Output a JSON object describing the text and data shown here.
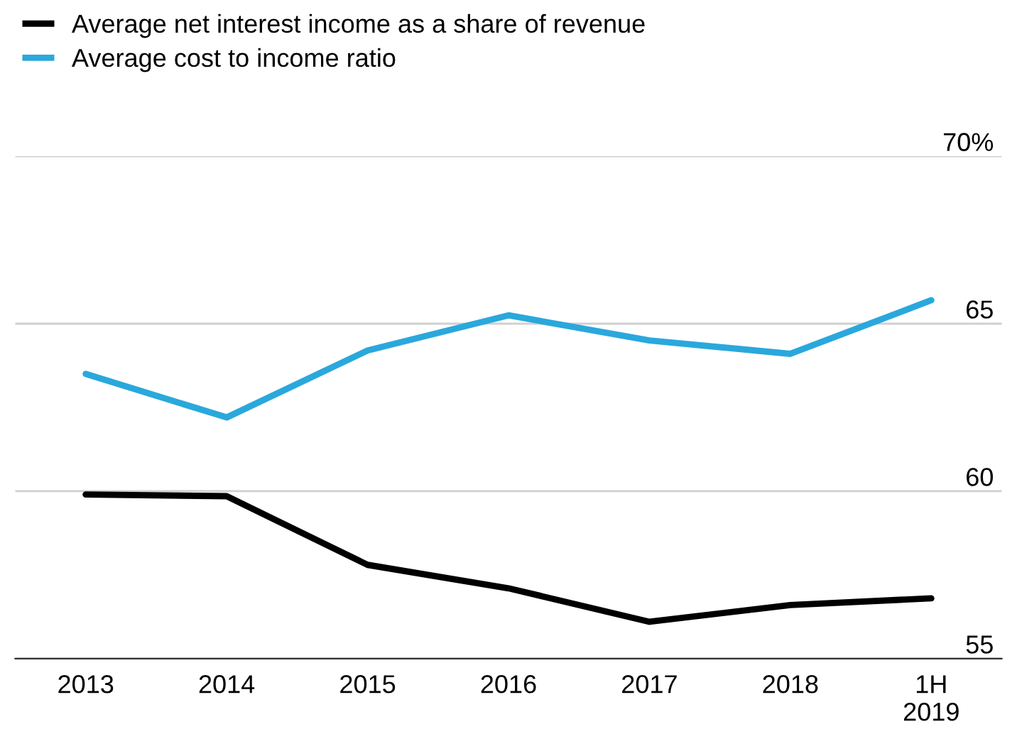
{
  "chart_data": {
    "type": "line",
    "categories": [
      "2013",
      "2014",
      "2015",
      "2016",
      "2017",
      "2018",
      "1H\n2019"
    ],
    "series": [
      {
        "name": "Average net interest income as a share of revenue",
        "color": "#000000",
        "values": [
          59.9,
          59.85,
          57.8,
          57.1,
          56.1,
          56.6,
          56.8
        ]
      },
      {
        "name": "Average cost to income ratio",
        "color": "#2aa8dc",
        "values": [
          63.5,
          62.2,
          64.2,
          65.25,
          64.5,
          64.1,
          65.7
        ]
      }
    ],
    "ylim": [
      55,
      70
    ],
    "yticks": [
      55,
      60,
      65,
      {
        "value": 70,
        "label": "70%"
      }
    ],
    "grid": "y",
    "legend": "top left",
    "marker": "none",
    "line_style": "solid"
  }
}
